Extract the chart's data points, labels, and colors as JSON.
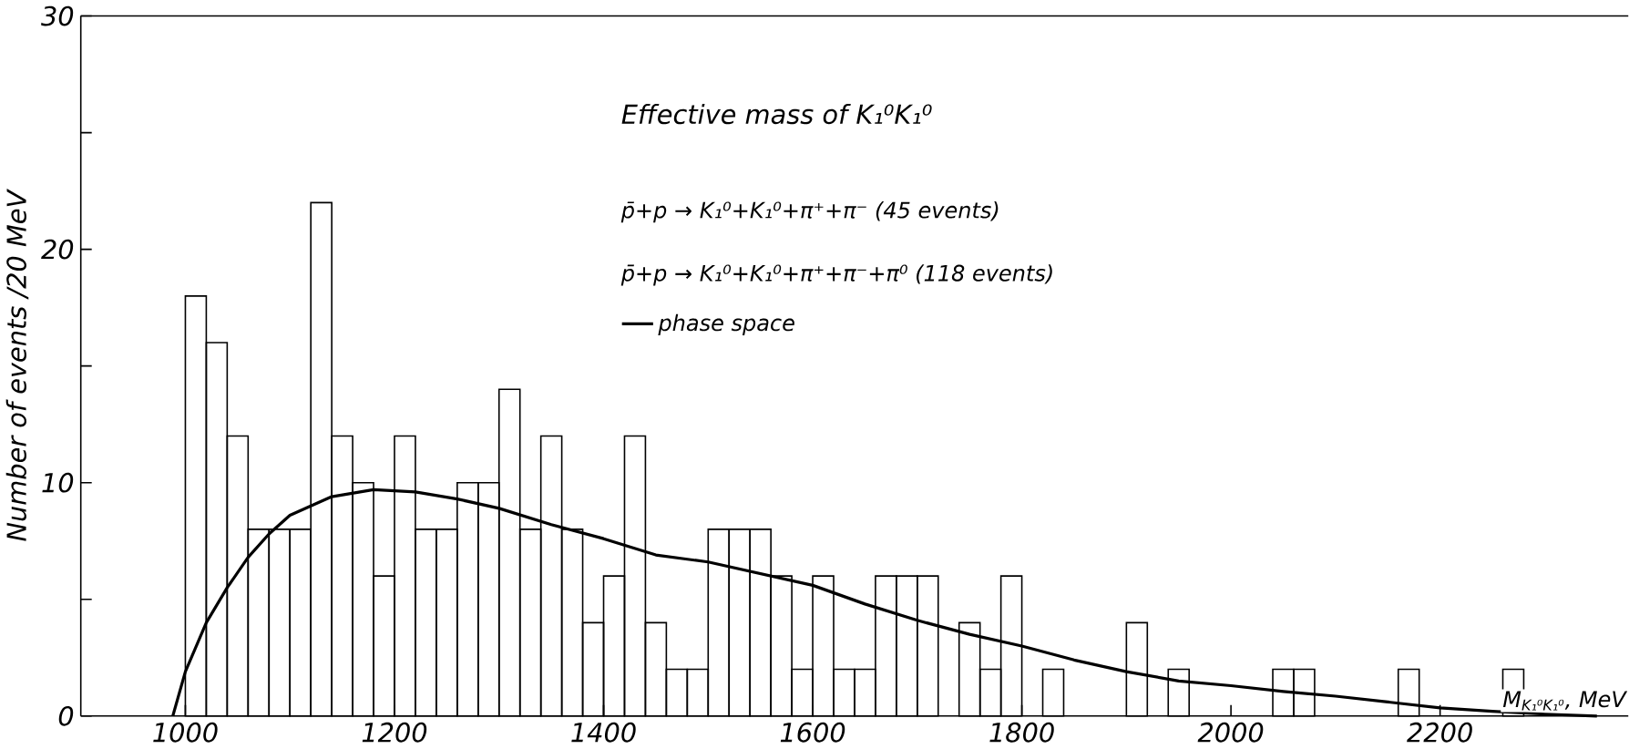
{
  "chart_data": {
    "type": "histogram",
    "title": "Effective mass of K₁⁰K₁⁰",
    "xlabel": "M$_{K₁⁰K₁⁰}$, MeV",
    "ylabel": "Number of events /20 MeV",
    "annotations": [
      "p̄+p → K₁⁰+K₁⁰+π⁺+π⁻ (45 events)",
      "p̄+p → K₁⁰+K₁⁰+π⁺+π⁻+π⁰ (118 events)"
    ],
    "bins": [
      1000,
      1020,
      1040,
      1060,
      1080,
      1100,
      1120,
      1140,
      1160,
      1180,
      1200,
      1220,
      1240,
      1260,
      1280,
      1300,
      1320,
      1340,
      1360,
      1380,
      1400,
      1420,
      1440,
      1460,
      1480,
      1500,
      1520,
      1540,
      1560,
      1580,
      1600,
      1620,
      1640,
      1660,
      1680,
      1700,
      1720,
      1740,
      1760,
      1780,
      1800,
      1820,
      1840,
      1860,
      1880,
      1900,
      1920,
      1940,
      1960,
      1980,
      2000,
      2020,
      2040,
      2060,
      2080,
      2100,
      2120,
      2140,
      2160,
      2180,
      2200,
      2220,
      2240,
      2260,
      2280
    ],
    "series": [
      {
        "type": "histogram",
        "color": "#000000",
        "values": [
          18,
          16,
          12,
          8,
          8,
          8,
          22,
          12,
          10,
          6,
          12,
          8,
          8,
          10,
          10,
          14,
          8,
          12,
          8,
          4,
          6,
          12,
          4,
          2,
          2,
          8,
          8,
          8,
          6,
          2,
          6,
          2,
          2,
          6,
          6,
          6,
          0,
          4,
          2,
          6,
          0,
          2,
          0,
          0,
          0,
          4,
          0,
          2,
          0,
          0,
          0,
          0,
          2,
          2,
          0,
          0,
          0,
          0,
          2,
          0,
          0,
          0,
          0,
          2
        ]
      },
      {
        "type": "line",
        "name": "phase space",
        "color": "#000000",
        "x": [
          988,
          1000,
          1020,
          1040,
          1060,
          1080,
          1100,
          1140,
          1180,
          1220,
          1260,
          1300,
          1350,
          1400,
          1450,
          1500,
          1550,
          1600,
          1650,
          1700,
          1750,
          1800,
          1850,
          1900,
          1950,
          2000,
          2050,
          2100,
          2150,
          2200,
          2250,
          2300,
          2350
        ],
        "values": [
          0,
          1.9,
          4.0,
          5.5,
          6.8,
          7.8,
          8.6,
          9.4,
          9.7,
          9.6,
          9.3,
          8.9,
          8.2,
          7.6,
          6.9,
          6.6,
          6.1,
          5.6,
          4.8,
          4.1,
          3.5,
          3.0,
          2.4,
          1.9,
          1.5,
          1.3,
          1.05,
          0.85,
          0.6,
          0.35,
          0.2,
          0.08,
          0
        ]
      }
    ],
    "xlim": [
      900,
      2380
    ],
    "ylim": [
      0,
      30
    ],
    "xticks": [
      1000,
      1200,
      1400,
      1600,
      1800,
      2000,
      2200
    ],
    "yticks": [
      0,
      {
        "value": 5,
        "label": null
      },
      10,
      {
        "value": 15,
        "label": null
      },
      20,
      {
        "value": 25,
        "label": null
      },
      30
    ],
    "legend": "top",
    "grid": false,
    "line_style": "solid",
    "marker": "none"
  }
}
